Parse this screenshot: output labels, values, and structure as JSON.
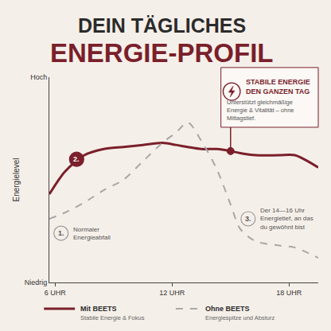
{
  "chart_data": {
    "type": "line",
    "title": "DEIN TÄGLICHES",
    "subtitle": "ENERGIE-PROFIL",
    "y_label": "Energielevel",
    "x": [
      5.7,
      6.5,
      7.5,
      8.5,
      9.5,
      10.5,
      11.5,
      12.2,
      12.8,
      13.5,
      14.3,
      15,
      15.5,
      16.3,
      17.5,
      18.3,
      19.5
    ],
    "series": [
      {
        "name": "Mit BEETS",
        "description": "Stabile Energie & Fokus",
        "color": "#7a1f2b",
        "line_style": "solid",
        "values": [
          43,
          54,
          62,
          65,
          66,
          67,
          68,
          67,
          66,
          65,
          65,
          64,
          63,
          62,
          62,
          62,
          56
        ]
      },
      {
        "name": "Ohne BEETS",
        "description": "Energiespitze und Absturz",
        "color": "#a8a8a8",
        "line_style": "dashed",
        "values": [
          31,
          34,
          39,
          45,
          50,
          59,
          68,
          73,
          78,
          69,
          55,
          38,
          26,
          20,
          18,
          17,
          12
        ]
      }
    ],
    "xlim": [
      5.7,
      19.5
    ],
    "xticks": [
      {
        "value": 6,
        "label": "6 UHR"
      },
      {
        "value": 12,
        "label": "12 UHR"
      },
      {
        "value": 18,
        "label": "18 UHR"
      }
    ],
    "ylim": [
      0,
      100
    ],
    "yticks": [
      {
        "value": 0,
        "label": "Niedrig"
      },
      {
        "value": 100,
        "label": "Hoch"
      }
    ],
    "grid": false,
    "annotations": [
      {
        "text": "1.",
        "x": 6.3,
        "y": 24,
        "marker": "outline",
        "note": "Normaler Energieabfall"
      },
      {
        "text": "2.",
        "x": 7.1,
        "y": 60,
        "marker": "filled"
      },
      {
        "text": "3.",
        "x": 15.9,
        "y": 31,
        "marker": "outline",
        "note": "Der 14—16 Uhr Energietief, an das du gewöhnt bist"
      },
      {
        "title": "STABILE ENERGIE DEN GANZEN TAG",
        "text": "Unterstützt gleichmäßige Energie & Vitalität – ohne Mittagstief.",
        "x": 15,
        "y": 64,
        "marker": "dot"
      }
    ]
  }
}
